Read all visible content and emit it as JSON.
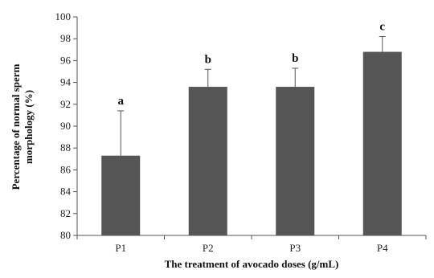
{
  "chart_data": {
    "type": "bar",
    "categories": [
      "P1",
      "P2",
      "P3",
      "P4"
    ],
    "values": [
      87.3,
      93.6,
      93.6,
      96.8
    ],
    "error_plus": [
      4.1,
      1.6,
      1.7,
      1.4
    ],
    "significance_labels": [
      "a",
      "b",
      "b",
      "c"
    ],
    "xlabel": "The treatment of avocado doses (g/mL)",
    "ylabel_line1": "Percentage of normal sperm",
    "ylabel_line2": "morphology (%)",
    "ylim": [
      80,
      100
    ],
    "yticks": [
      "80",
      "82",
      "84",
      "86",
      "88",
      "90",
      "92",
      "94",
      "96",
      "98",
      "100"
    ],
    "grid": false,
    "bar_color": "#555555"
  }
}
